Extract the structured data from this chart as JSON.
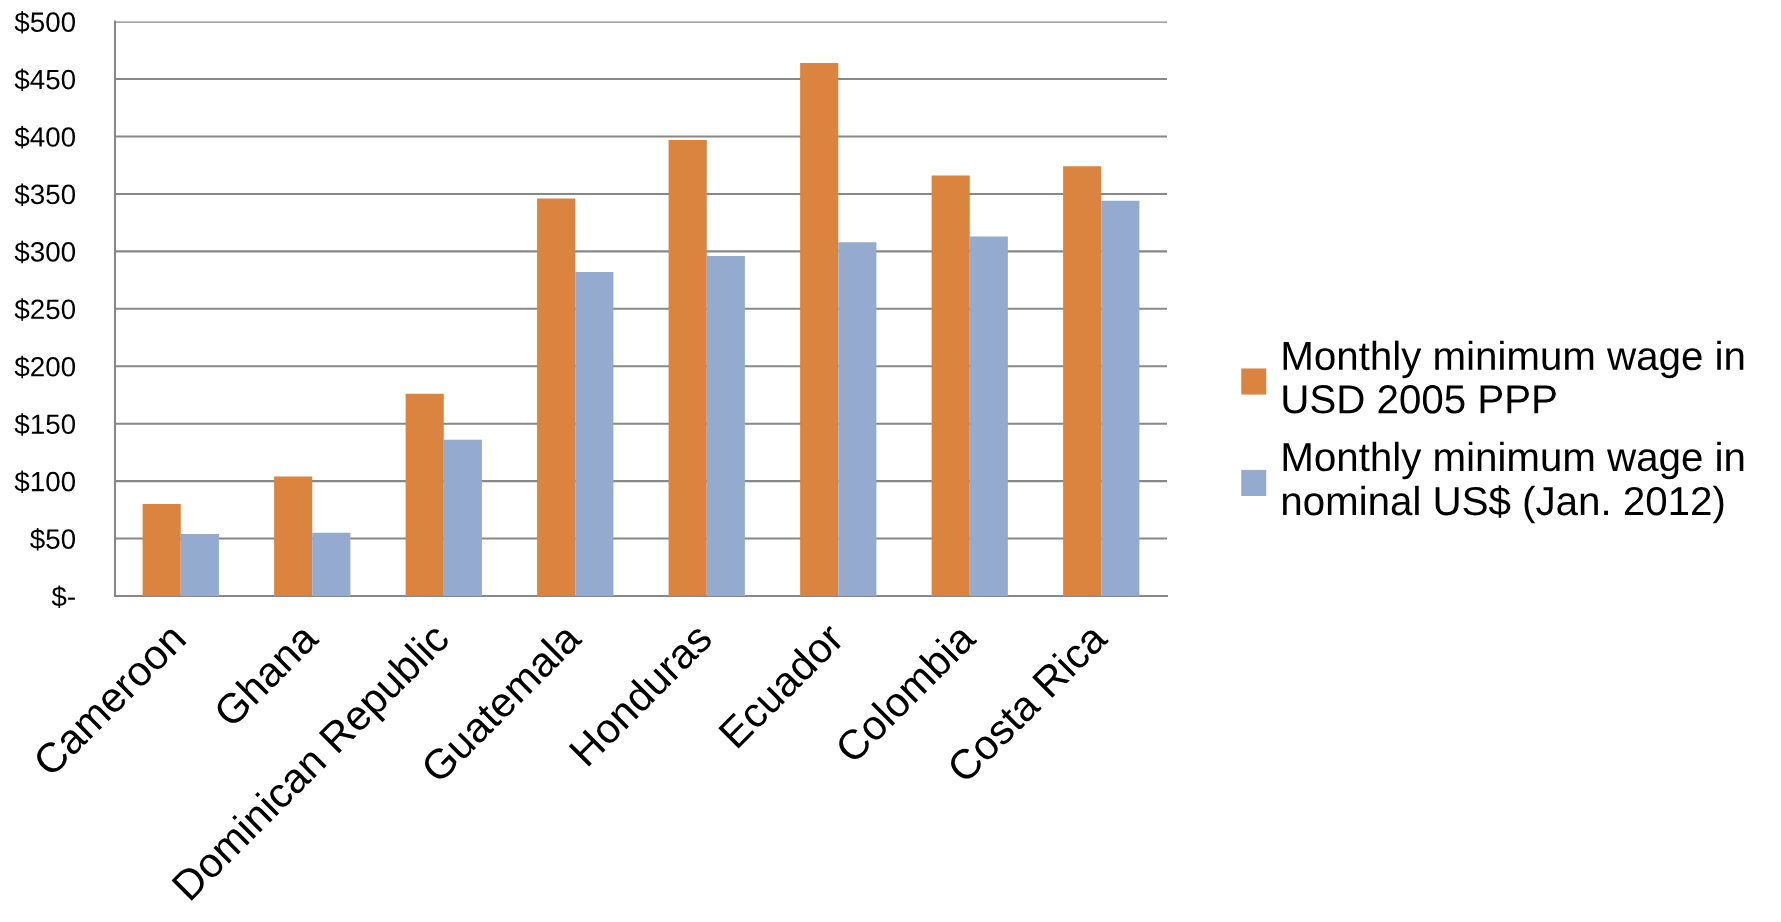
{
  "chart_data": {
    "type": "bar",
    "categories": [
      "Cameroon",
      "Ghana",
      "Dominican Republic",
      "Guatemala",
      "Honduras",
      "Ecuador",
      "Colombia",
      "Costa Rica"
    ],
    "series": [
      {
        "name": "Monthly minimum wage in\nUSD 2005 PPP",
        "color": "#da8440",
        "values": [
          80,
          104,
          176,
          346,
          397,
          464,
          366,
          374
        ]
      },
      {
        "name": "Monthly minimum wage in\nnominal US$ (Jan. 2012)",
        "color": "#94aacf",
        "values": [
          54,
          55,
          136,
          282,
          296,
          308,
          313,
          344
        ]
      }
    ],
    "ylim": [
      0,
      500
    ],
    "yticks": [
      {
        "value": 0,
        "label": "$-"
      },
      {
        "value": 50,
        "label": "$50"
      },
      {
        "value": 100,
        "label": "$100"
      },
      {
        "value": 150,
        "label": "$150"
      },
      {
        "value": 200,
        "label": "$200"
      },
      {
        "value": 250,
        "label": "$250"
      },
      {
        "value": 300,
        "label": "$300"
      },
      {
        "value": 350,
        "label": "$350"
      },
      {
        "value": 400,
        "label": "$400"
      },
      {
        "value": 450,
        "label": "$450"
      },
      {
        "value": 500,
        "label": "$500"
      }
    ],
    "grid": "y",
    "legend": "right"
  }
}
